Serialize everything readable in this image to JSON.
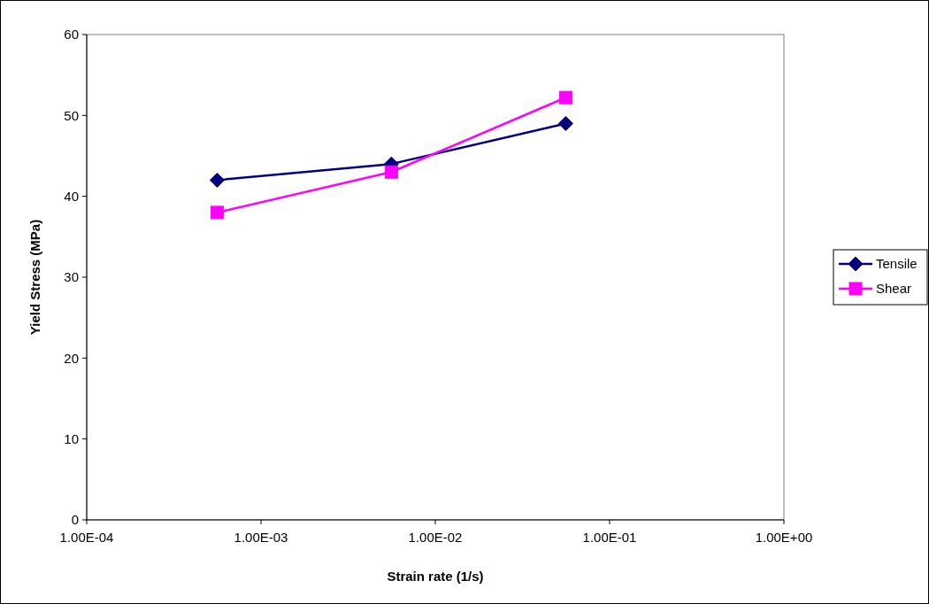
{
  "chart_data": {
    "type": "line",
    "xlabel": "Strain rate (1/s)",
    "ylabel": "Yield Stress (MPa)",
    "log": "x",
    "xlim": [
      0.0001,
      1
    ],
    "xticks": [
      {
        "value": 0.0001,
        "label": "1.00E-04"
      },
      {
        "value": 0.001,
        "label": "1.00E-03"
      },
      {
        "value": 0.01,
        "label": "1.00E-02"
      },
      {
        "value": 0.1,
        "label": "1.00E-01"
      },
      {
        "value": 1,
        "label": "1.00E+00"
      }
    ],
    "ylim": [
      0,
      60
    ],
    "yticks": [
      0,
      10,
      20,
      30,
      40,
      50,
      60
    ],
    "grid": false,
    "legend": "right",
    "line_style": "solid",
    "series": [
      {
        "name": "Tensile",
        "color": "#000080",
        "marker": "diamond",
        "x": [
          0.00056,
          0.0056,
          0.056
        ],
        "values": [
          42,
          44,
          49
        ]
      },
      {
        "name": "Shear",
        "color": "#ff00ff",
        "marker": "square",
        "x": [
          0.00056,
          0.0056,
          0.056
        ],
        "values": [
          38,
          43,
          52.2
        ]
      }
    ]
  }
}
